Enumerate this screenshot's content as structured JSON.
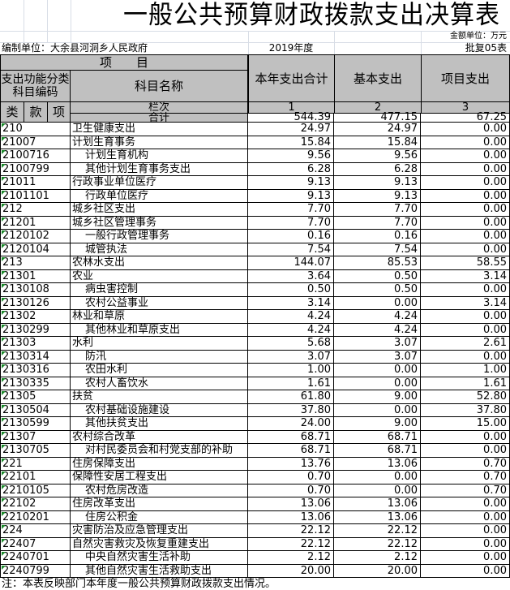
{
  "title": "一般公共预算财政拨款支出决算表",
  "unit": "金额单位：万元",
  "org": "编制单位：大余县河洞乡人民政府",
  "year": "2019年度",
  "table_no": "批复05表",
  "header": {
    "item": "项　　目",
    "func_code": "支出功能分类科目编码",
    "subject_name": "科目名称",
    "total": "本年支出合计",
    "basic": "基本支出",
    "project": "项目支出",
    "lei": "类",
    "kuan": "款",
    "xiang": "项",
    "column_no": "栏次",
    "col1": "1",
    "col2": "2",
    "col3": "3",
    "sum_label": "合计"
  },
  "totals": [
    "544.39",
    "477.15",
    "67.25"
  ],
  "rows": [
    [
      "210",
      "卫生健康支出",
      "24.97",
      "24.97",
      "0.00",
      0
    ],
    [
      "21007",
      "计划生育事务",
      "15.84",
      "15.84",
      "0.00",
      0
    ],
    [
      "2100716",
      "计划生育机构",
      "9.56",
      "9.56",
      "0.00",
      1
    ],
    [
      "2100799",
      "其他计划生育事务支出",
      "6.28",
      "6.28",
      "0.00",
      1
    ],
    [
      "21011",
      "行政事业单位医疗",
      "9.13",
      "9.13",
      "0.00",
      0
    ],
    [
      "2101101",
      "行政单位医疗",
      "9.13",
      "9.13",
      "0.00",
      1
    ],
    [
      "212",
      "城乡社区支出",
      "7.70",
      "7.70",
      "0.00",
      0
    ],
    [
      "21201",
      "城乡社区管理事务",
      "7.70",
      "7.70",
      "0.00",
      0
    ],
    [
      "2120102",
      "一般行政管理事务",
      "0.16",
      "0.16",
      "0.00",
      1
    ],
    [
      "2120104",
      "城管执法",
      "7.54",
      "7.54",
      "0.00",
      1
    ],
    [
      "213",
      "农林水支出",
      "144.07",
      "85.53",
      "58.55",
      0
    ],
    [
      "21301",
      "农业",
      "3.64",
      "0.50",
      "3.14",
      0
    ],
    [
      "2130108",
      "病虫害控制",
      "0.50",
      "0.50",
      "0.00",
      1
    ],
    [
      "2130126",
      "农村公益事业",
      "3.14",
      "0.00",
      "3.14",
      1
    ],
    [
      "21302",
      "林业和草原",
      "4.24",
      "4.24",
      "0.00",
      0
    ],
    [
      "2130299",
      "其他林业和草原支出",
      "4.24",
      "4.24",
      "0.00",
      1
    ],
    [
      "21303",
      "水利",
      "5.68",
      "3.07",
      "2.61",
      0
    ],
    [
      "2130314",
      "防汛",
      "3.07",
      "3.07",
      "0.00",
      1
    ],
    [
      "2130316",
      "农田水利",
      "1.00",
      "0.00",
      "1.00",
      1
    ],
    [
      "2130335",
      "农村人畜饮水",
      "1.61",
      "0.00",
      "1.61",
      1
    ],
    [
      "21305",
      "扶贫",
      "61.80",
      "9.00",
      "52.80",
      0
    ],
    [
      "2130504",
      "农村基础设施建设",
      "37.80",
      "0.00",
      "37.80",
      1
    ],
    [
      "2130599",
      "其他扶贫支出",
      "24.00",
      "9.00",
      "15.00",
      1
    ],
    [
      "21307",
      "农村综合改革",
      "68.71",
      "68.71",
      "0.00",
      0
    ],
    [
      "2130705",
      "对村民委员会和村党支部的补助",
      "68.71",
      "68.71",
      "0.00",
      1
    ],
    [
      "221",
      "住房保障支出",
      "13.76",
      "13.06",
      "0.70",
      0
    ],
    [
      "22101",
      "保障性安居工程支出",
      "0.70",
      "0.00",
      "0.70",
      0
    ],
    [
      "2210105",
      "农村危房改造",
      "0.70",
      "0.00",
      "0.70",
      1
    ],
    [
      "22102",
      "住房改革支出",
      "13.06",
      "13.06",
      "0.00",
      0
    ],
    [
      "2210201",
      "住房公积金",
      "13.06",
      "13.06",
      "0.00",
      1
    ],
    [
      "224",
      "灾害防治及应急管理支出",
      "22.12",
      "22.12",
      "0.00",
      0
    ],
    [
      "22407",
      "自然灾害救灾及恢复重建支出",
      "22.12",
      "22.12",
      "0.00",
      0
    ],
    [
      "2240701",
      "中央自然灾害生活补助",
      "2.12",
      "2.12",
      "0.00",
      1
    ],
    [
      "2240799",
      "其他自然灾害生活救助支出",
      "20.00",
      "20.00",
      "0.00",
      1
    ]
  ],
  "note": "注：本表反映部门本年度一般公共预算财政拨款支出情况。",
  "colors": {
    "header_bg": "#c0c0c0",
    "marker": "#1a8a2a"
  }
}
